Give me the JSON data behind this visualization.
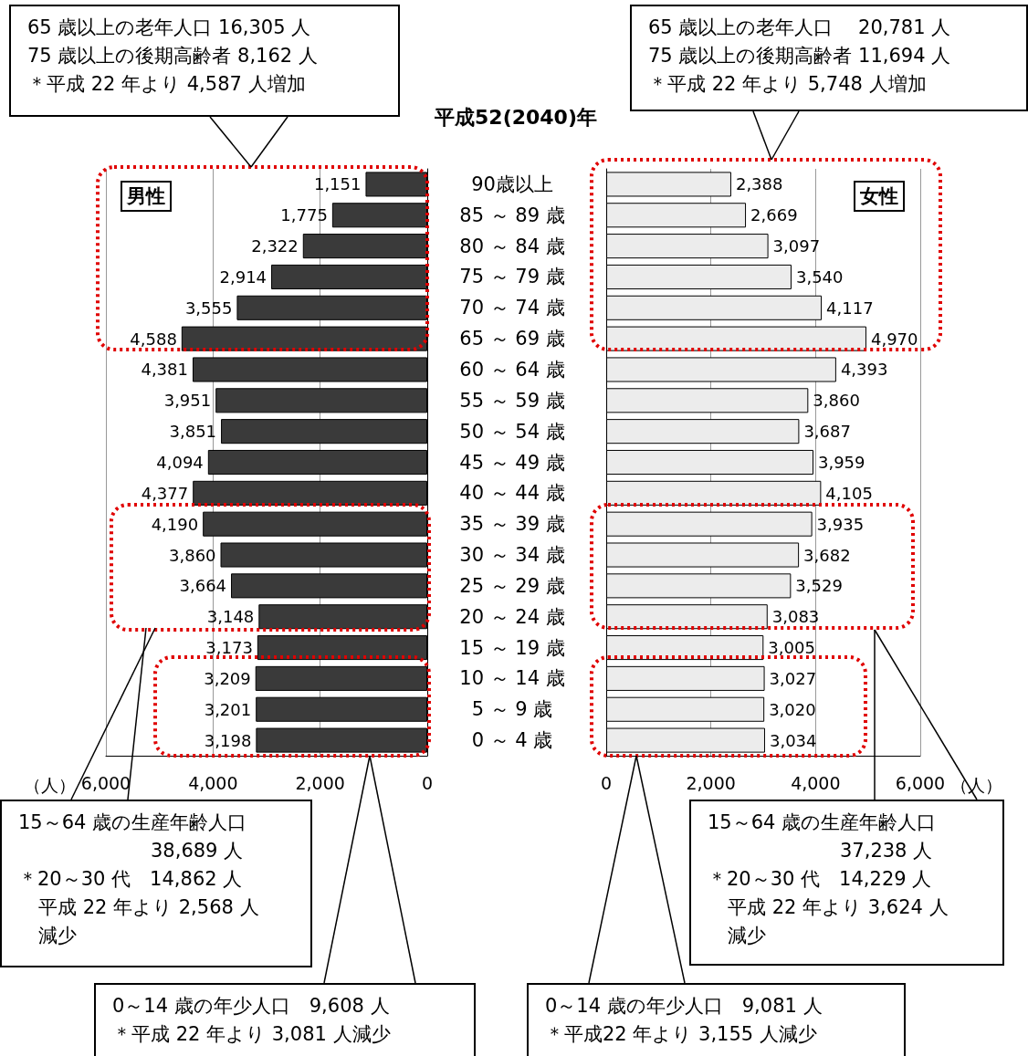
{
  "chart_data": [
    {
      "type": "bar",
      "orientation": "horizontal",
      "title": "平成52(2040)年",
      "subtitle": "男性",
      "xlabel": "（人）",
      "categories": [
        "90歳以上",
        "85 ～ 89 歳",
        "80 ～ 84 歳",
        "75 ～ 79 歳",
        "70 ～ 74 歳",
        "65 ～ 69 歳",
        "60 ～ 64 歳",
        "55 ～ 59 歳",
        "50 ～ 54 歳",
        "45 ～ 49 歳",
        "40 ～ 44 歳",
        "35 ～ 39 歳",
        "30 ～ 34 歳",
        "25 ～ 29 歳",
        "20 ～ 24 歳",
        "15 ～ 19 歳",
        "10 ～ 14 歳",
        "5 ～ 9 歳",
        "0 ～ 4 歳"
      ],
      "values": [
        1151,
        1775,
        2322,
        2914,
        3555,
        4588,
        4381,
        3951,
        3851,
        4094,
        4377,
        4190,
        3860,
        3664,
        3148,
        3173,
        3209,
        3201,
        3198
      ],
      "value_labels": [
        "1,151",
        "1,775",
        "2,322",
        "2,914",
        "3,555",
        "4,588",
        "4,381",
        "3,951",
        "3,851",
        "4,094",
        "4,377",
        "4,190",
        "3,860",
        "3,664",
        "3,148",
        "3,173",
        "3,209",
        "3,201",
        "3,198"
      ],
      "color": "#3a3a3a",
      "xlim": [
        6000,
        0
      ],
      "xticks": [
        {
          "value": 6000,
          "label": "6,000"
        },
        {
          "value": 4000,
          "label": "4,000"
        },
        {
          "value": 2000,
          "label": "2,000"
        },
        0
      ],
      "grid": "x",
      "annotations": [
        "65 歳以上の老年人口 16,305 人",
        "75 歳以上の後期高齢者 8,162 人",
        "＊平成 22 年より 4,587 人増加",
        "15～64 歳の生産年齢人口",
        "38,689 人",
        "＊20～30 代　14,862 人",
        "平成 22 年より 2,568 人",
        "減少",
        "0～14 歳の年少人口　9,608 人",
        "＊平成 22 年より 3,081 人減少"
      ]
    },
    {
      "type": "bar",
      "orientation": "horizontal",
      "subtitle": "女性",
      "xlabel": "（人）",
      "tick_labels": "x",
      "categories": [
        null,
        null,
        null,
        null,
        null,
        null,
        null,
        null,
        null,
        null,
        null,
        null,
        null,
        null,
        null,
        null,
        null,
        null,
        null
      ],
      "values": [
        2388,
        2669,
        3097,
        3540,
        4117,
        4970,
        4393,
        3860,
        3687,
        3959,
        4105,
        3935,
        3682,
        3529,
        3083,
        3005,
        3027,
        3020,
        3034
      ],
      "value_labels": [
        "2,388",
        "2,669",
        "3,097",
        "3,540",
        "4,117",
        "4,970",
        "4,393",
        "3,860",
        "3,687",
        "3,959",
        "4,105",
        "3,935",
        "3,682",
        "3,529",
        "3,083",
        "3,005",
        "3,027",
        "3,020",
        "3,034"
      ],
      "color": "#ececec",
      "xlim": [
        0,
        6000
      ],
      "xticks": [
        0,
        {
          "value": 2000,
          "label": "2,000"
        },
        {
          "value": 4000,
          "label": "4,000"
        },
        {
          "value": 6000,
          "label": "6,000"
        }
      ],
      "grid": "x",
      "annotations": [
        "65 歳以上の老年人口　 20,781 人",
        "75 歳以上の後期高齢者 11,694 人",
        "＊平成 22 年より 5,748 人増加",
        "15～64 歳の生産年齢人口",
        "37,238 人",
        "＊20～30 代　14,229 人",
        "平成 22 年より 3,624 人",
        "減少",
        "0～14 歳の年少人口　9,081 人",
        "＊平成22 年より 3,155 人減少"
      ]
    }
  ]
}
